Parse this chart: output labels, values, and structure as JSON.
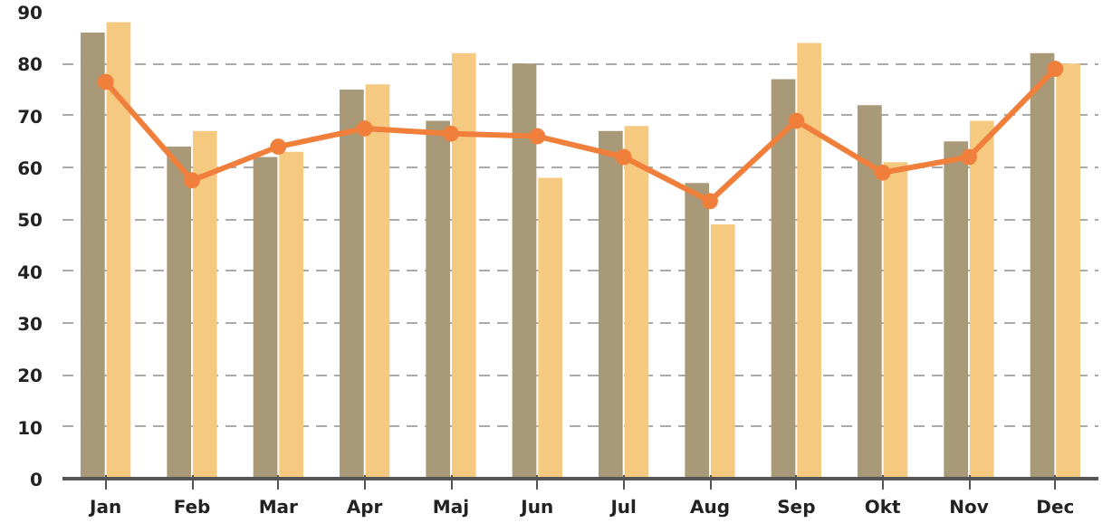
{
  "chart_data": {
    "type": "bar",
    "categories": [
      "Jan",
      "Feb",
      "Mar",
      "Apr",
      "Maj",
      "Jun",
      "Jul",
      "Aug",
      "Sep",
      "Okt",
      "Nov",
      "Dec"
    ],
    "series": [
      {
        "color": "#a89a78",
        "values": [
          86,
          64,
          62,
          75,
          69,
          80,
          67,
          57,
          77,
          72,
          65,
          82
        ]
      },
      {
        "color": "#f5c97f",
        "values": [
          88,
          67,
          63,
          76,
          82,
          58,
          68,
          49,
          84,
          61,
          69,
          80
        ]
      },
      {
        "type": "line",
        "color": "#f07f3c",
        "marker": "circle",
        "values": [
          76.5,
          57.5,
          64,
          67.5,
          66.5,
          66,
          62,
          53.5,
          69,
          59,
          62,
          79
        ]
      }
    ],
    "ylim": [
      0,
      90
    ],
    "yticks": [
      0,
      10,
      20,
      30,
      40,
      50,
      60,
      70,
      80,
      90
    ],
    "grid": "y"
  }
}
